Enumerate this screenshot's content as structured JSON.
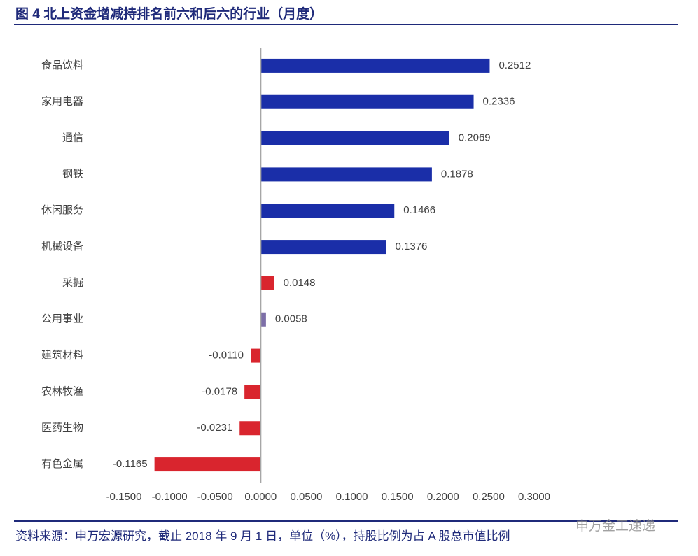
{
  "chart_data": {
    "type": "bar",
    "orientation": "horizontal",
    "title": "图 4 北上资金增减持排名前六和后六的行业（月度）",
    "source": "资料来源：申万宏源研究，截止 2018 年 9 月 1 日，单位（%），持股比例为占 A 股总市值比例",
    "watermark": "申万金工速递",
    "categories": [
      "食品饮料",
      "家用电器",
      "通信",
      "钢铁",
      "休闲服务",
      "机械设备",
      "采掘",
      "公用事业",
      "建筑材料",
      "农林牧渔",
      "医药生物",
      "有色金属"
    ],
    "values": [
      0.2512,
      0.2336,
      0.2069,
      0.1878,
      0.1466,
      0.1376,
      0.0148,
      0.0058,
      -0.011,
      -0.0178,
      -0.0231,
      -0.1165
    ],
    "value_labels": [
      "0.2512",
      "0.2336",
      "0.2069",
      "0.1878",
      "0.1466",
      "0.1376",
      "0.0148",
      "0.0058",
      "-0.0110",
      "-0.0178",
      "-0.0231",
      "-0.1165"
    ],
    "colors": [
      "#1a2ea8",
      "#1a2ea8",
      "#1a2ea8",
      "#1a2ea8",
      "#1a2ea8",
      "#1a2ea8",
      "#d9252e",
      "#7d6fa8",
      "#d9252e",
      "#d9252e",
      "#d9252e",
      "#d9252e"
    ],
    "xlim": [
      -0.15,
      0.3
    ],
    "xticks": [
      {
        "value": -0.15,
        "label": "-0.1500"
      },
      {
        "value": -0.1,
        "label": "-0.1000"
      },
      {
        "value": -0.05,
        "label": "-0.0500"
      },
      {
        "value": 0,
        "label": "0.0000"
      },
      {
        "value": 0.05,
        "label": "0.0500"
      },
      {
        "value": 0.1,
        "label": "0.1000"
      },
      {
        "value": 0.15,
        "label": "0.1500"
      },
      {
        "value": 0.2,
        "label": "0.2000"
      },
      {
        "value": 0.25,
        "label": "0.2500"
      },
      {
        "value": 0.3,
        "label": "0.3000"
      }
    ],
    "grid": false
  }
}
